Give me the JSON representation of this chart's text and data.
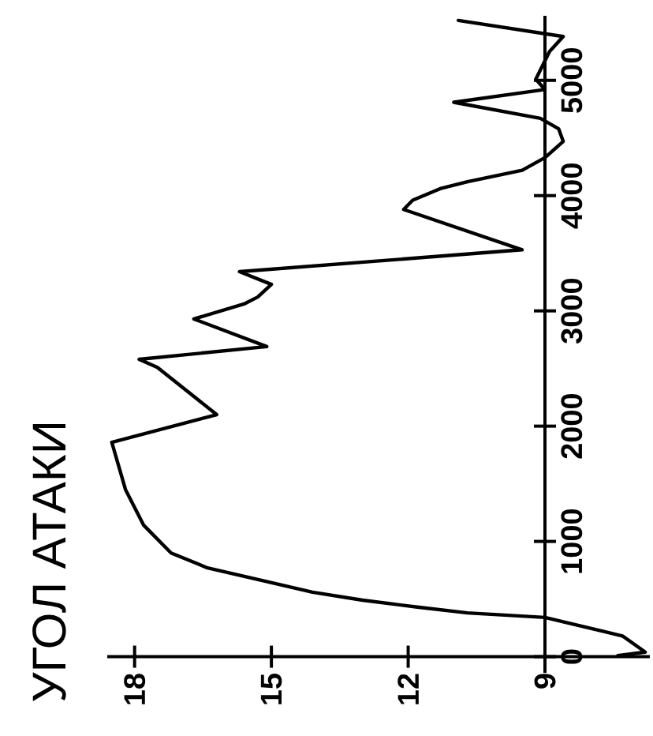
{
  "chart_data": {
    "type": "line",
    "title": "УГОЛ АТАКИ",
    "x": [
      7.4,
      6.8,
      7.3,
      9.0,
      10.7,
      11.8,
      13.0,
      14.1,
      15.2,
      16.4,
      17.2,
      17.8,
      18.2,
      18.5,
      16.2,
      17.5,
      17.9,
      15.1,
      16.7,
      15.6,
      15.3,
      15.0,
      15.7,
      9.5,
      12.1,
      11.9,
      11.3,
      10.7,
      9.5,
      9.0,
      8.6,
      8.7,
      9.1,
      11.0,
      9.0,
      9.2,
      8.9,
      8.6,
      10.9
    ],
    "values": [
      10,
      40,
      180,
      340,
      380,
      430,
      490,
      560,
      660,
      770,
      900,
      1140,
      1450,
      1860,
      2100,
      2510,
      2580,
      2690,
      2930,
      3060,
      3120,
      3230,
      3340,
      3530,
      3880,
      3960,
      4060,
      4120,
      4220,
      4330,
      4470,
      4580,
      4670,
      4810,
      4920,
      5010,
      5250,
      5380,
      5520
    ],
    "color": "#000000",
    "xlim": [
      18.6,
      6.7
    ],
    "ylim": [
      -140,
      5560
    ],
    "xticks": [
      18,
      15,
      12,
      9
    ],
    "yticks": [
      0,
      1000,
      2000,
      3000,
      4000,
      5000
    ]
  }
}
